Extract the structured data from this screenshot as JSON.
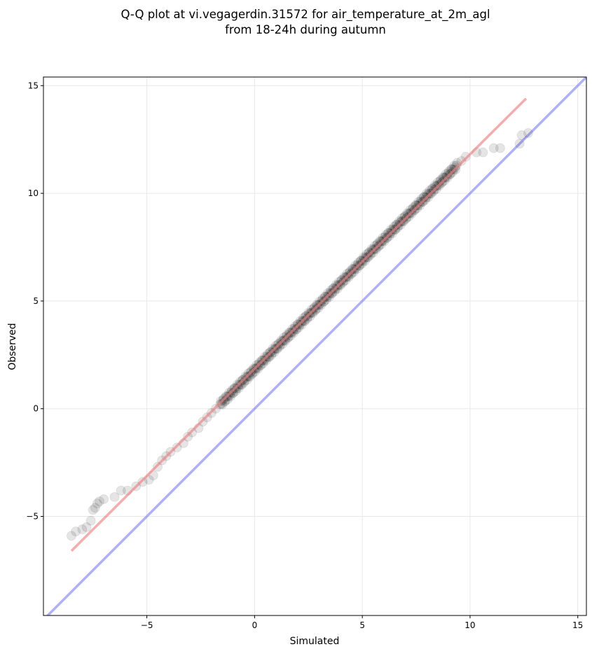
{
  "chart_data": {
    "type": "scatter",
    "title": [
      "Q-Q plot at vi.vegagerdin.31572 for air_temperature_at_2m_agl",
      "from 18-24h during autumn"
    ],
    "xlabel": "Simulated",
    "ylabel": "Observed",
    "xlim": [
      -9.8,
      15.4
    ],
    "ylim": [
      -9.6,
      15.4
    ],
    "xticks": [
      -5,
      0,
      5,
      10,
      15
    ],
    "yticks": [
      -5,
      0,
      5,
      10,
      15
    ],
    "grid": true,
    "fit_line": {
      "color": "#f08080",
      "x": [
        -8.5,
        12.6
      ],
      "y": [
        -6.6,
        14.4
      ]
    },
    "identity_line": {
      "color": "#7b7bf0"
    },
    "point_color": "#000000",
    "points_sparse": [
      [
        -8.5,
        -5.9
      ],
      [
        -8.3,
        -5.7
      ],
      [
        -8.0,
        -5.6
      ],
      [
        -7.8,
        -5.5
      ],
      [
        -7.6,
        -5.2
      ],
      [
        -7.5,
        -4.7
      ],
      [
        -7.4,
        -4.6
      ],
      [
        -7.3,
        -4.4
      ],
      [
        -7.2,
        -4.3
      ],
      [
        -7.0,
        -4.2
      ],
      [
        -6.5,
        -4.1
      ],
      [
        -6.2,
        -3.8
      ],
      [
        -5.9,
        -3.8
      ],
      [
        -5.5,
        -3.6
      ],
      [
        -5.2,
        -3.4
      ],
      [
        -4.9,
        -3.3
      ],
      [
        -4.7,
        -3.1
      ],
      [
        -4.5,
        -2.7
      ],
      [
        -4.3,
        -2.4
      ],
      [
        -4.1,
        -2.2
      ],
      [
        -3.9,
        -2.0
      ],
      [
        -3.6,
        -1.8
      ],
      [
        -3.3,
        -1.6
      ],
      [
        -3.1,
        -1.3
      ],
      [
        -2.9,
        -1.1
      ],
      [
        -2.6,
        -0.9
      ],
      [
        -2.4,
        -0.6
      ],
      [
        -2.2,
        -0.4
      ],
      [
        -2.0,
        -0.2
      ],
      [
        -1.8,
        0.0
      ],
      [
        9.6,
        11.5
      ],
      [
        9.8,
        11.7
      ],
      [
        10.3,
        11.9
      ],
      [
        10.6,
        11.9
      ],
      [
        11.1,
        12.1
      ],
      [
        11.4,
        12.1
      ],
      [
        12.3,
        12.3
      ],
      [
        12.4,
        12.7
      ],
      [
        12.7,
        12.8
      ]
    ],
    "points_dense_range": {
      "x": [
        -1.6,
        9.4
      ],
      "y": [
        0.2,
        11.3
      ]
    }
  }
}
